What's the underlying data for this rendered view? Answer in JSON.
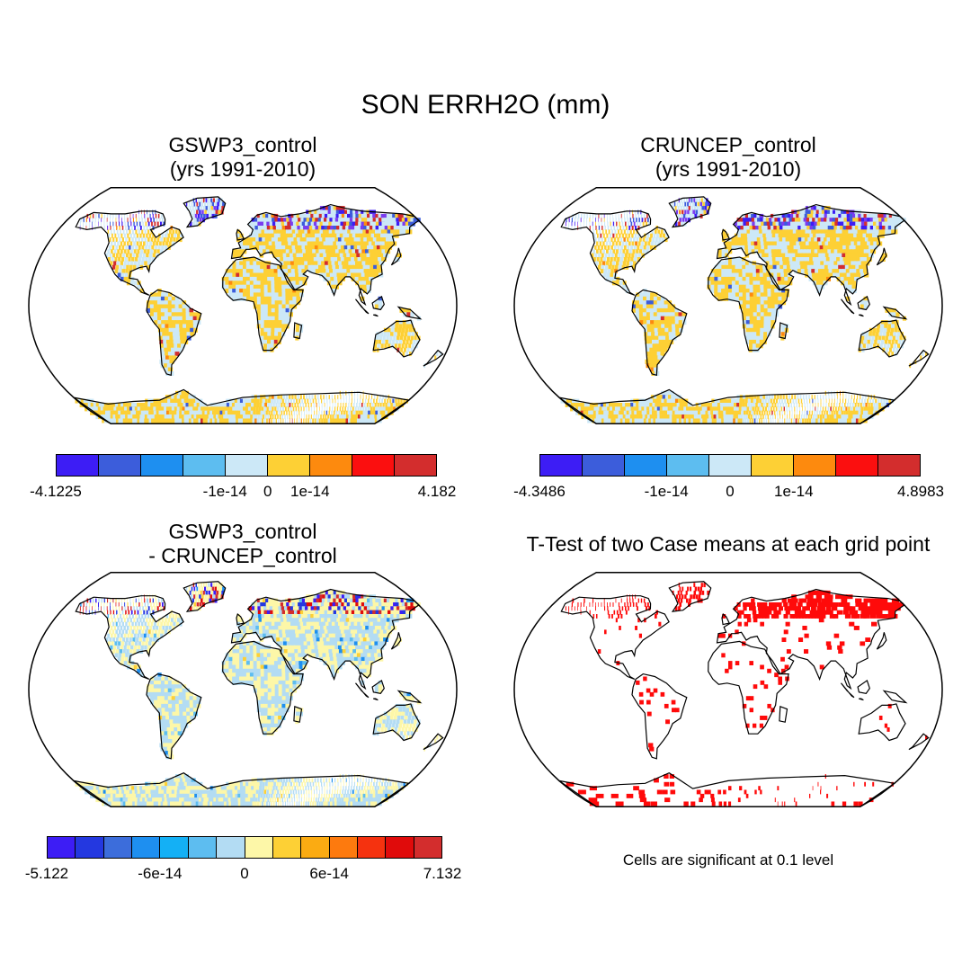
{
  "title": "SON ERRH2O (mm)",
  "panels": [
    {
      "title_line1": "GSWP3_control",
      "title_line2": "(yrs 1991-2010)",
      "colorbar": {
        "colors": [
          "#3d1df5",
          "#3c5ddb",
          "#1e8ff0",
          "#5dbdf0",
          "#cce8f7",
          "#fdd035",
          "#fd8a0e",
          "#fb0f0f",
          "#d32d2d"
        ],
        "labels": [
          "-4.1225",
          "-1e-14",
          "0",
          "1e-14",
          "4.182"
        ]
      }
    },
    {
      "title_line1": "CRUNCEP_control",
      "title_line2": "(yrs 1991-2010)",
      "colorbar": {
        "colors": [
          "#3d1df5",
          "#3c5ddb",
          "#1e8ff0",
          "#5dbdf0",
          "#cce8f7",
          "#fdd035",
          "#fd8a0e",
          "#fb0f0f",
          "#d32d2d"
        ],
        "labels": [
          "-4.3486",
          "-1e-14",
          "0",
          "1e-14",
          "4.8983"
        ]
      }
    },
    {
      "title_line1": "GSWP3_control",
      "title_line2": "- CRUNCEP_control",
      "colorbar": {
        "colors": [
          "#3d1df5",
          "#2438e0",
          "#3c6ddb",
          "#1e8ff0",
          "#14b0f5",
          "#5dbdf0",
          "#b3dcf3",
          "#fdf7a8",
          "#fdd035",
          "#fbab12",
          "#fd7a0e",
          "#f5320f",
          "#e00b0b",
          "#d32d2d"
        ],
        "labels": [
          "-5.122",
          "-6e-14",
          "0",
          "6e-14",
          "7.132"
        ]
      }
    },
    {
      "title_line1": "T-Test of two Case means at each grid point",
      "note": "Cells are significant at 0.1 level"
    }
  ],
  "legend_notes": {
    "ttest": "Cells are significant at 0.1 level"
  }
}
